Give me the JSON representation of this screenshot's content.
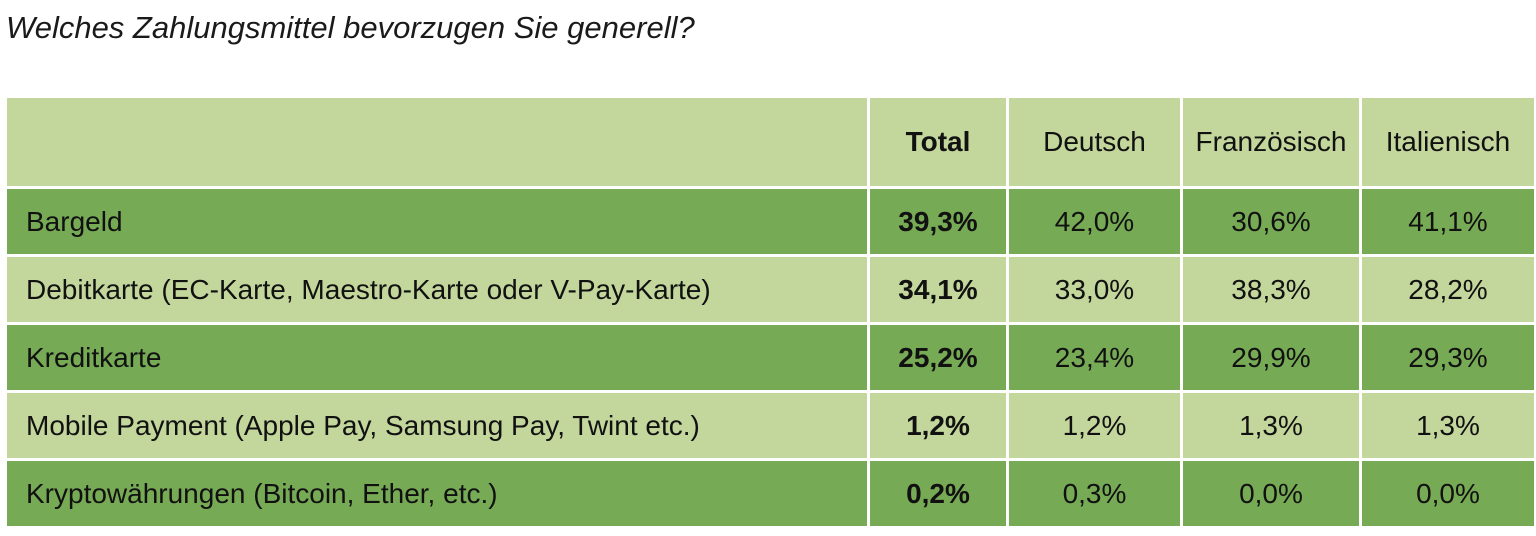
{
  "title": "Welches Zahlungsmittel bevorzugen Sie generell?",
  "chart_data": {
    "type": "table",
    "columns": [
      "",
      "Total",
      "Deutsch",
      "Französisch",
      "Italienisch"
    ],
    "rows": [
      {
        "label": "Bargeld",
        "values": [
          "39,3%",
          "42,0%",
          "30,6%",
          "41,1%"
        ]
      },
      {
        "label": "Debitkarte (EC-Karte, Maestro-Karte oder V-Pay-Karte)",
        "values": [
          "34,1%",
          "33,0%",
          "38,3%",
          "28,2%"
        ]
      },
      {
        "label": "Kreditkarte",
        "values": [
          "25,2%",
          "23,4%",
          "29,9%",
          "29,3%"
        ]
      },
      {
        "label": "Mobile Payment (Apple Pay, Samsung Pay, Twint etc.)",
        "values": [
          "1,2%",
          "1,2%",
          "1,3%",
          "1,3%"
        ]
      },
      {
        "label": "Kryptowährungen (Bitcoin, Ether, etc.)",
        "values": [
          "0,2%",
          "0,3%",
          "0,0%",
          "0,0%"
        ]
      }
    ]
  },
  "colors": {
    "row_dark": "#77aa55",
    "row_light": "#c3d69b",
    "header": "#c3d69b"
  }
}
